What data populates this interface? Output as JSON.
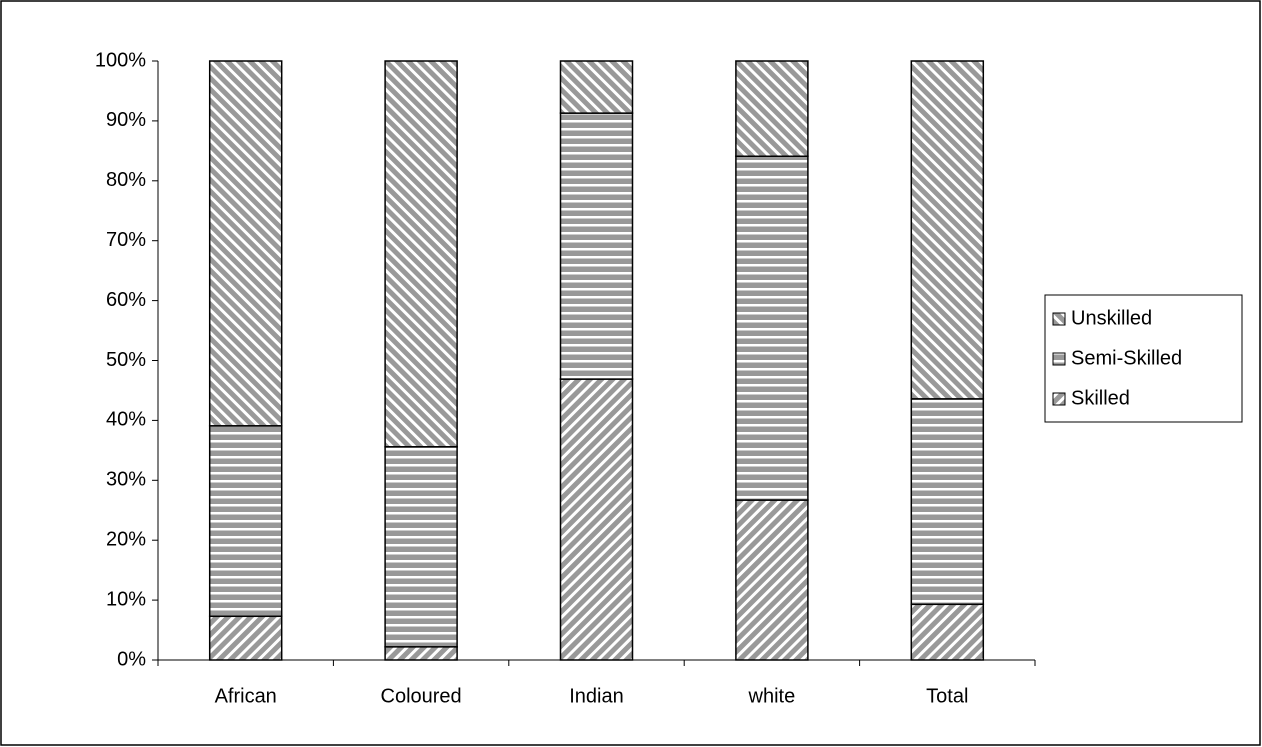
{
  "chart_data": {
    "type": "stacked-bar-100",
    "categories": [
      "African",
      "Coloured",
      "Indian",
      "white",
      "Total"
    ],
    "series": [
      {
        "name": "Skilled",
        "color": "#999999",
        "pattern": "slash",
        "values": [
          7.3,
          2.2,
          46.9,
          26.7,
          9.3
        ]
      },
      {
        "name": "Semi-Skilled",
        "color": "#999999",
        "pattern": "horizontal",
        "values": [
          31.8,
          33.4,
          44.4,
          57.4,
          34.3
        ]
      },
      {
        "name": "Unskilled",
        "color": "#999999",
        "pattern": "backslash",
        "values": [
          60.9,
          64.4,
          8.7,
          15.9,
          56.4
        ]
      }
    ],
    "ylim": [
      0,
      100
    ],
    "yticks": [
      {
        "value": 0,
        "label": "0%"
      },
      {
        "value": 10,
        "label": "10%"
      },
      {
        "value": 20,
        "label": "20%"
      },
      {
        "value": 30,
        "label": "30%"
      },
      {
        "value": 40,
        "label": "40%"
      },
      {
        "value": 50,
        "label": "50%"
      },
      {
        "value": 60,
        "label": "60%"
      },
      {
        "value": 70,
        "label": "70%"
      },
      {
        "value": 80,
        "label": "80%"
      },
      {
        "value": 90,
        "label": "90%"
      },
      {
        "value": 100,
        "label": "100%"
      }
    ],
    "grid": false,
    "legend": "right"
  }
}
